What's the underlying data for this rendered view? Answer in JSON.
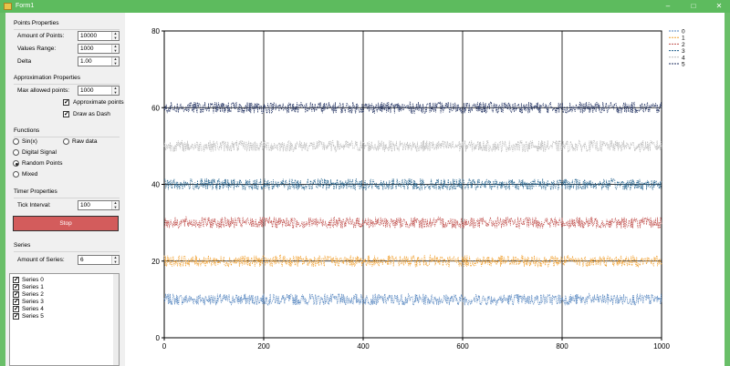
{
  "window": {
    "title": "Form1",
    "minimize": "–",
    "maximize": "□",
    "close": "✕"
  },
  "points_properties": {
    "title": "Points Properties",
    "amount_label": "Amount of Points:",
    "amount_value": "10000",
    "range_label": "Values Range:",
    "range_value": "1000",
    "delta_label": "Delta",
    "delta_value": "1.00"
  },
  "approximation": {
    "title": "Approximation Properties",
    "max_points_label": "Max allowed points:",
    "max_points_value": "1000",
    "approximate_label": "Approximate points",
    "approximate_checked": true,
    "dash_label": "Draw as Dash",
    "dash_checked": true
  },
  "functions": {
    "title": "Functions",
    "options": [
      {
        "label": "Sin(x)",
        "selected": false
      },
      {
        "label": "Raw data",
        "selected": false
      },
      {
        "label": "Digital Signal",
        "selected": false
      },
      {
        "label": "Random Points",
        "selected": true
      },
      {
        "label": "Mixed",
        "selected": false
      }
    ]
  },
  "timer": {
    "title": "Timer Properties",
    "tick_label": "Tick Interval:",
    "tick_value": "100"
  },
  "stop_button": "Stop",
  "series_panel": {
    "title": "Series",
    "amount_label": "Amount of Series:",
    "amount_value": "6",
    "items": [
      {
        "label": "Series 0",
        "checked": true
      },
      {
        "label": "Series 1",
        "checked": true
      },
      {
        "label": "Series 2",
        "checked": true
      },
      {
        "label": "Series 3",
        "checked": true
      },
      {
        "label": "Series 4",
        "checked": true
      },
      {
        "label": "Series 5",
        "checked": true
      }
    ]
  },
  "chart_data": {
    "type": "line",
    "title": "",
    "xlabel": "",
    "ylabel": "",
    "xlim": [
      0,
      1000
    ],
    "ylim": [
      0,
      80
    ],
    "x_ticks": [
      0,
      200,
      400,
      600,
      800,
      1000
    ],
    "y_ticks": [
      0,
      20,
      40,
      60,
      80
    ],
    "grid": true,
    "legend": "top-right",
    "line_style": "dashed",
    "series": [
      {
        "name": "0",
        "color": "#4f81bd",
        "center": 10,
        "min": 8.5,
        "max": 11.5
      },
      {
        "name": "1",
        "color": "#f0a030",
        "center": 20,
        "min": 18.5,
        "max": 21.5
      },
      {
        "name": "2",
        "color": "#c0504d",
        "center": 30,
        "min": 28.5,
        "max": 31.5
      },
      {
        "name": "3",
        "color": "#1f5f8b",
        "center": 40,
        "min": 38.5,
        "max": 41.5
      },
      {
        "name": "4",
        "color": "#b8b8b8",
        "center": 50,
        "min": 48.5,
        "max": 51.5
      },
      {
        "name": "5",
        "color": "#1f2f5f",
        "center": 60,
        "min": 58.5,
        "max": 61.5
      }
    ]
  }
}
